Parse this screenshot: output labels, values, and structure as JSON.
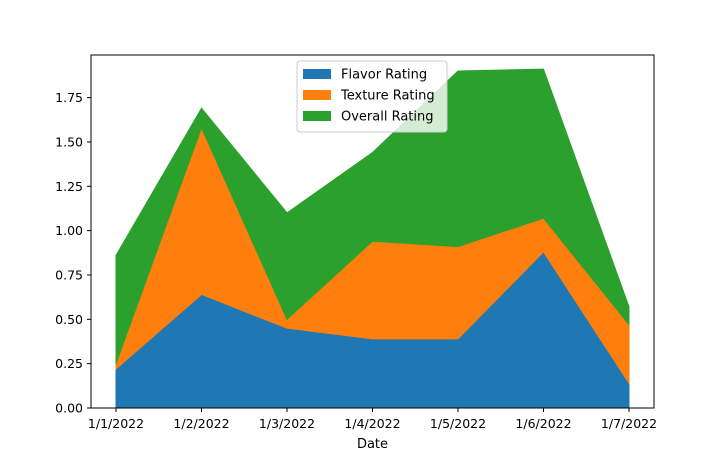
{
  "chart_data": {
    "type": "area",
    "stacked": true,
    "xlabel": "Date",
    "ylabel": "",
    "title": "",
    "categories": [
      "1/1/2022",
      "1/2/2022",
      "1/3/2022",
      "1/4/2022",
      "1/5/2022",
      "1/6/2022",
      "1/7/2022"
    ],
    "series": [
      {
        "name": "Flavor Rating",
        "color": "#1f77b4",
        "values": [
          0.22,
          0.64,
          0.45,
          0.39,
          0.39,
          0.88,
          0.14
        ]
      },
      {
        "name": "Texture Rating",
        "color": "#ff7f0e",
        "values": [
          0.03,
          0.94,
          0.05,
          0.55,
          0.52,
          0.19,
          0.33
        ]
      },
      {
        "name": "Overall Rating",
        "color": "#2ca02c",
        "values": [
          0.61,
          0.11,
          0.6,
          0.5,
          0.99,
          0.84,
          0.1
        ]
      }
    ],
    "ylim": [
      0,
      1.99
    ],
    "yticks": [
      "0.00",
      "0.25",
      "0.50",
      "0.75",
      "1.00",
      "1.25",
      "1.50",
      "1.75"
    ],
    "legend_position": "top-center",
    "grid": false
  }
}
